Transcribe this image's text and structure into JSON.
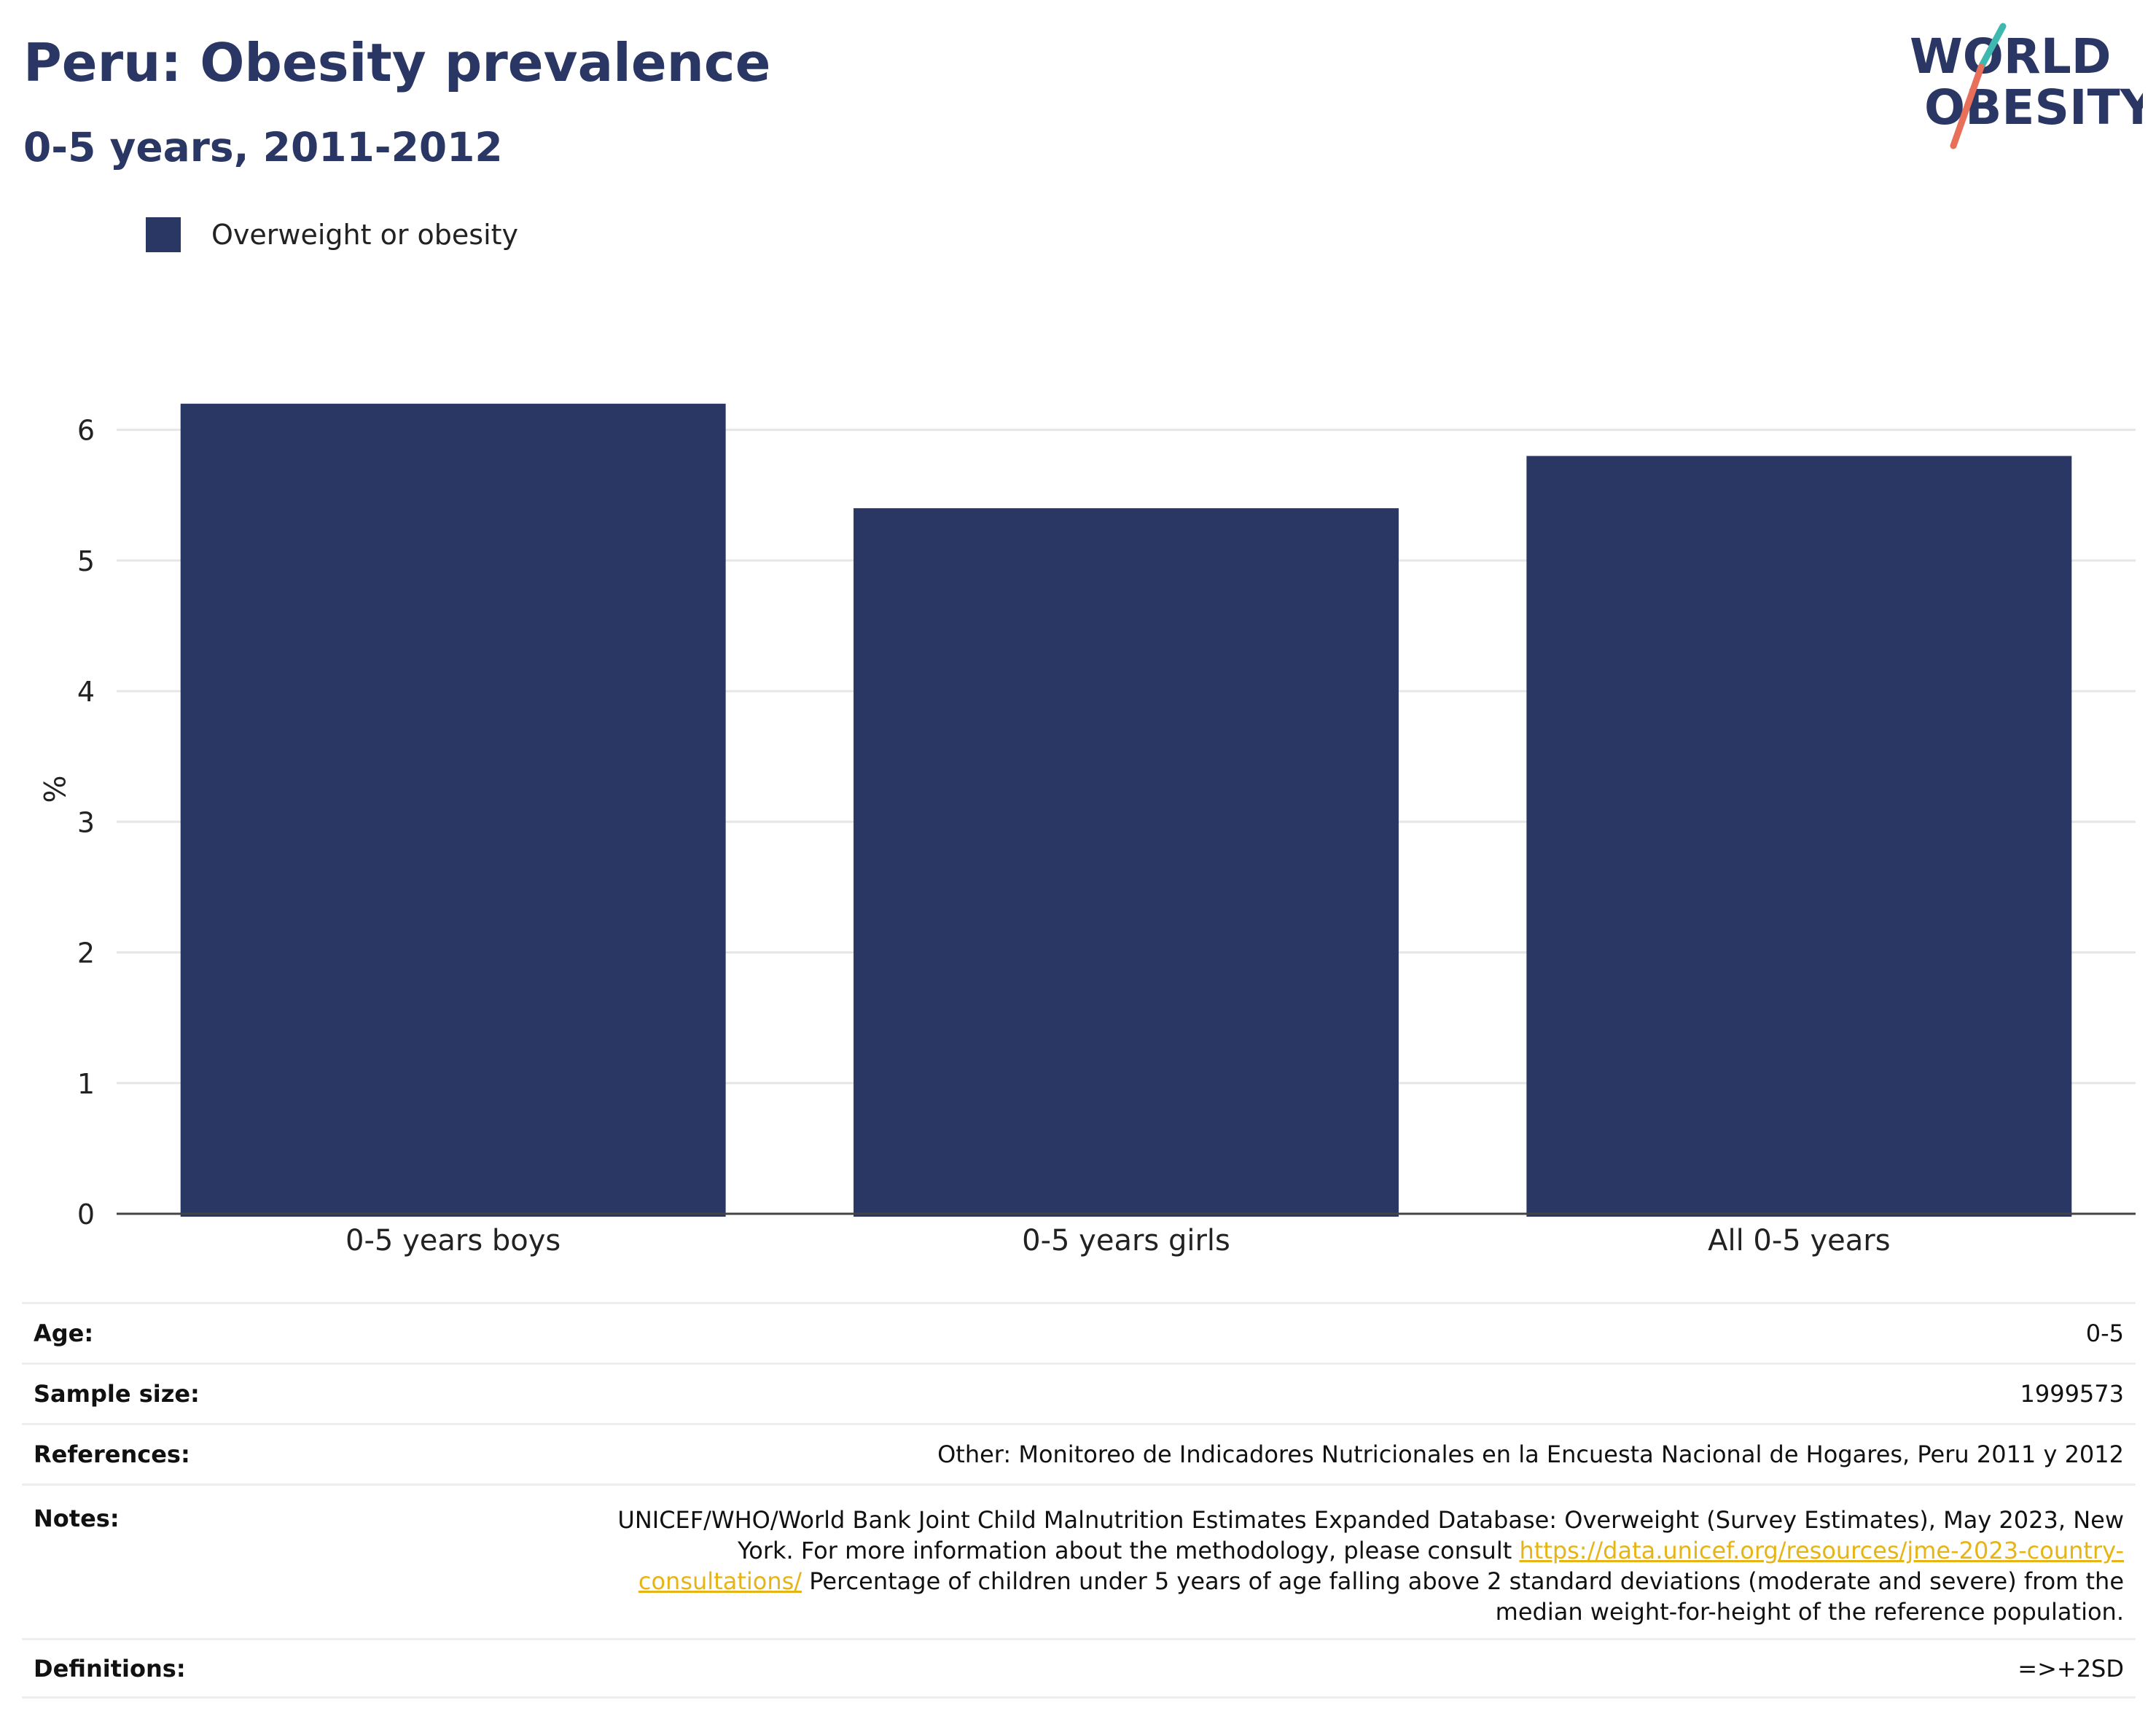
{
  "header": {
    "title": "Peru: Obesity prevalence",
    "subtitle": "0-5 years, 2011-2012"
  },
  "logo": {
    "line1": "WORLD",
    "line2": "OBESITY"
  },
  "colors": {
    "bar": "#2a3663",
    "title": "#2a3663",
    "grid": "#e6e6e6",
    "link": "#e7b416",
    "logo_teal": "#3fb8b0",
    "logo_coral": "#e8705a"
  },
  "chart_data": {
    "type": "bar",
    "categories": [
      "0-5 years boys",
      "0-5 years girls",
      "All 0-5 years"
    ],
    "series": [
      {
        "name": "Overweight or obesity",
        "values": [
          6.2,
          5.4,
          5.8
        ]
      }
    ],
    "ylabel": "%",
    "xlabel": "",
    "ylim": [
      0,
      6.5
    ],
    "yticks": [
      0,
      1,
      2,
      3,
      4,
      5,
      6
    ],
    "grid": true,
    "legend": "top-left"
  },
  "meta": {
    "age_label": "Age:",
    "age_value": "0-5",
    "sample_label": "Sample size:",
    "sample_value": "1999573",
    "refs_label": "References:",
    "refs_value": "Other: Monitoreo de Indicadores Nutricionales en la Encuesta Nacional de Hogares, Peru 2011 y 2012",
    "notes_label": "Notes:",
    "notes_text_1": "UNICEF/WHO/World Bank Joint Child Malnutrition Estimates Expanded Database: Overweight (Survey Estimates), May 2023, New York. For more information about the methodology, please consult ",
    "notes_link": "https://data.unicef.org/resources/jme-2023-country-consultations/",
    "notes_text_2": " Percentage of children under 5 years of age falling above 2 standard deviations (moderate and severe) from the median weight-for-height of the reference population.",
    "defs_label": "Definitions:",
    "defs_value": "=>+2SD"
  }
}
